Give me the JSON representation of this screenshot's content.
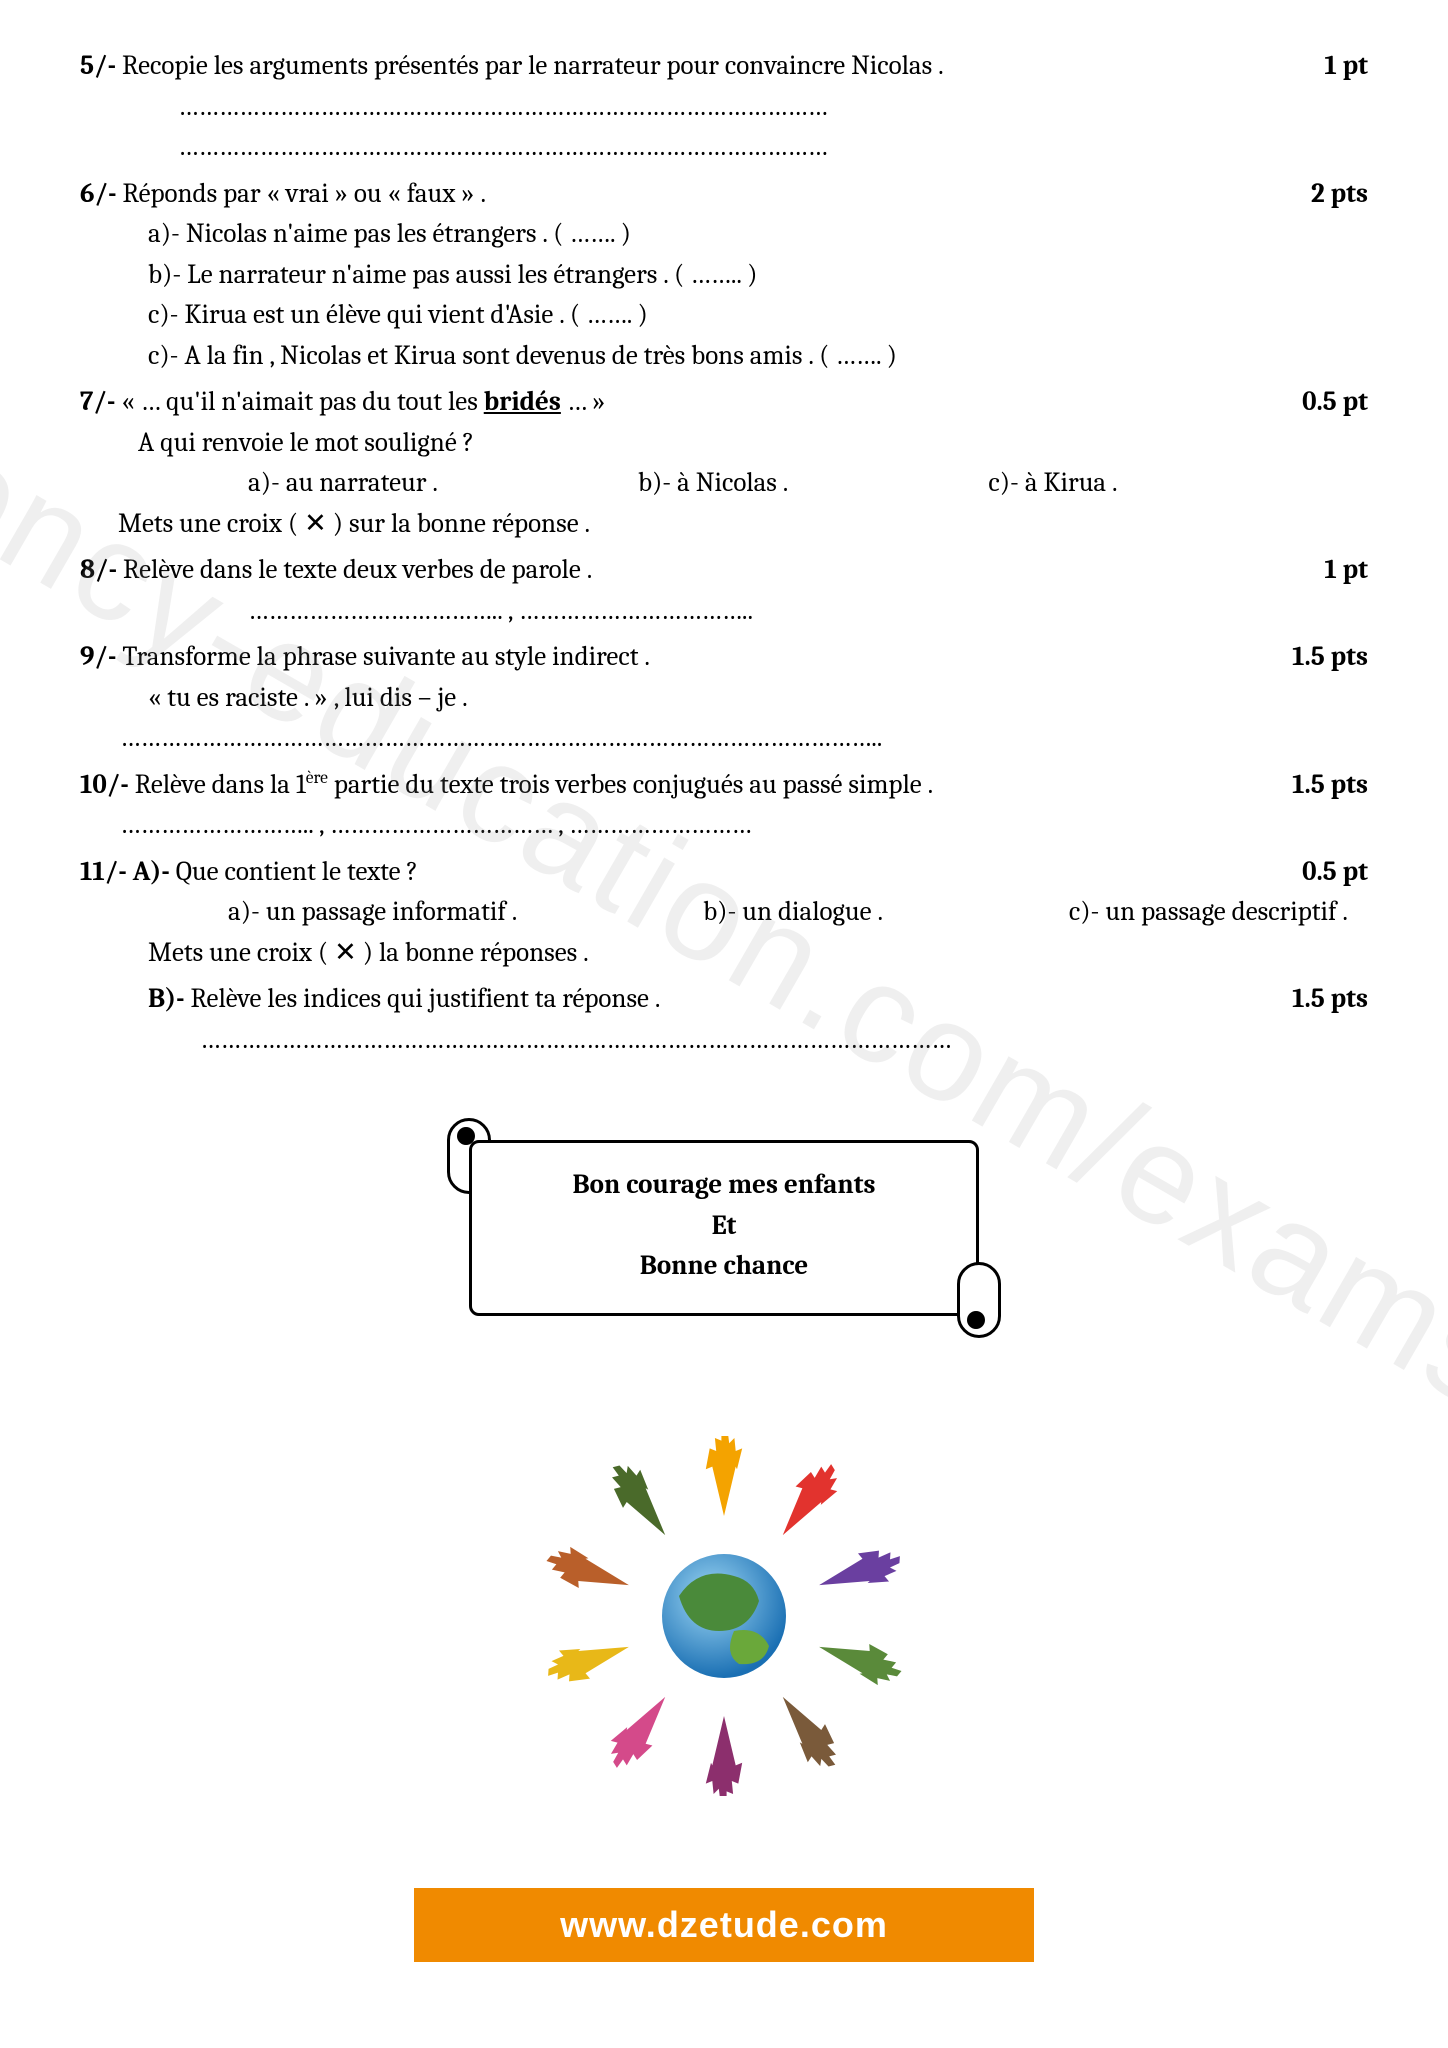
{
  "watermark": "ency-education.com/exams",
  "q5": {
    "num": "5/-",
    "text": "Recopie les arguments présentés par le narrateur pour convaincre  Nicolas .",
    "points": "1 pt",
    "blank1": "……………………………………………………………………………………",
    "blank2": "……………………………………………………………………………………"
  },
  "q6": {
    "num": "6/-",
    "text": "Réponds par « vrai »  ou  « faux » .",
    "points": "2 pts",
    "a": "a)- Nicolas n'aime pas les étrangers . ( ……. )",
    "b": "b)- Le narrateur n'aime pas aussi les étrangers . ( …….. )",
    "c": "c)- Kirua est un élève qui vient d'Asie . ( ……. )",
    "d": "c)- A la fin , Nicolas et Kirua sont devenus de très bons amis . ( ……. )"
  },
  "q7": {
    "num": "7/-",
    "text_pre": "«  … qu'il n'aimait pas du tout les ",
    "text_u": "bridés",
    "text_post": " … »",
    "points": "0.5 pt",
    "sub": "A qui renvoie le mot souligné ?",
    "opt_a": "a)- au narrateur .",
    "opt_b": "b)- à Nicolas .",
    "opt_c": "c)- à Kirua .",
    "instr": "Mets une croix ( ✕ ) sur la bonne réponse ."
  },
  "q8": {
    "num": "8/-",
    "text": "Relève dans le texte deux verbes de parole .",
    "points": "1 pt",
    "blank": "………………………………..  ,    …………………………….."
  },
  "q9": {
    "num": "9/-",
    "text": "Transforme la phrase suivante au style indirect .",
    "points": "1.5 pts",
    "line": "« tu es raciste . » , lui dis – je .",
    "blank": "………………………………………………………………………………………………….."
  },
  "q10": {
    "num": "10/-",
    "text_pre": "Relève dans la 1",
    "text_sup": "ère",
    "text_post": " partie du texte trois verbes conjugués au passé simple .",
    "points": "1.5 pts",
    "blank": "……………………….. , …………………………… , ………………………"
  },
  "q11": {
    "num": "11/- A)-",
    "text": "Que contient le texte ?",
    "points_a": "0.5 pt",
    "opt_a": "a)- un passage informatif .",
    "opt_b": "b)- un dialogue .",
    "opt_c": "c)- un passage descriptif .",
    "instr": "Mets une croix ( ✕ ) la bonne réponses .",
    "b_label": "B)-",
    "b_text": "Relève les indices qui justifient ta réponse .",
    "points_b": "1.5 pts",
    "blank": "…………………………………………………………………………………………………"
  },
  "scroll": {
    "l1": "Bon courage mes enfants",
    "l2": "Et",
    "l3": "Bonne chance"
  },
  "footer": "www.dzetude.com",
  "hand_colors": [
    "#f4a300",
    "#e2332e",
    "#6a3fa0",
    "#5a8a3a",
    "#7a5a3a",
    "#8c2f6d",
    "#d44a8a",
    "#e8b818",
    "#b95f2a",
    "#4a6a2a"
  ]
}
